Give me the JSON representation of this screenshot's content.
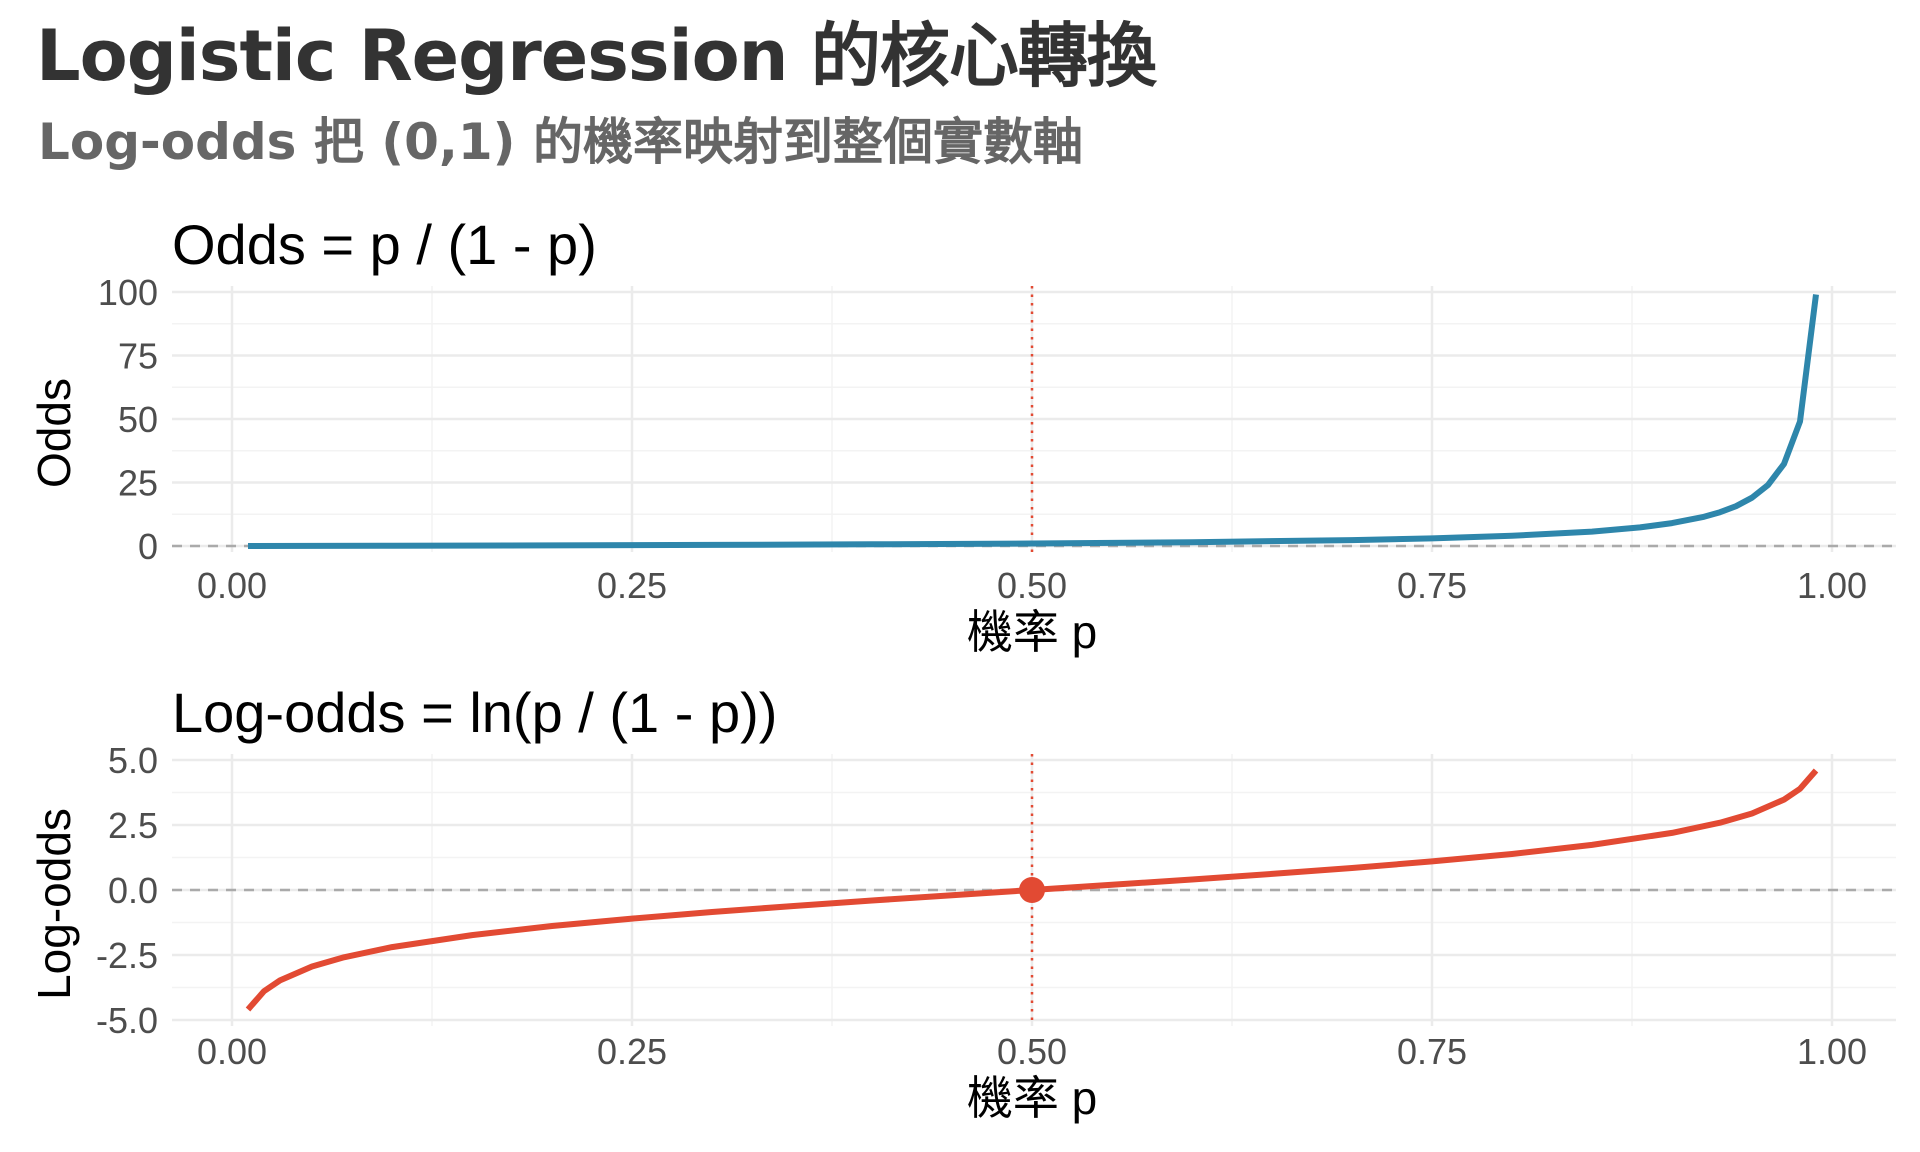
{
  "header": {
    "title": "Logistic Regression 的核心轉換",
    "subtitle": "Log-odds 把 (0,1) 的機率映射到整個實數軸"
  },
  "colors": {
    "odds_line": "#2e86ab",
    "logodds_line": "#e24a33",
    "vline": "#e24a33",
    "hline": "#aaaaaa",
    "grid": "#ebebeb"
  },
  "chart_data": [
    {
      "type": "line",
      "title": "Odds = p / (1 - p)",
      "xlabel": "機率 p",
      "ylabel": "Odds",
      "xlim": [
        0,
        1
      ],
      "ylim": [
        0,
        100
      ],
      "x_ticks": [
        0,
        0.25,
        0.5,
        0.75,
        1
      ],
      "x_tick_labels": [
        "0.00",
        "0.25",
        "0.50",
        "0.75",
        "1.00"
      ],
      "y_ticks": [
        0,
        25,
        50,
        75,
        100
      ],
      "y_tick_labels": [
        "0",
        "25",
        "50",
        "75",
        "100"
      ],
      "grid": true,
      "reference_lines": {
        "vertical_x": 0.5,
        "horizontal_y": 0
      },
      "series": [
        {
          "x": [
            0.01,
            0.05,
            0.1,
            0.2,
            0.3,
            0.4,
            0.5,
            0.6,
            0.7,
            0.75,
            0.8,
            0.85,
            0.88,
            0.9,
            0.92,
            0.93,
            0.94,
            0.95,
            0.96,
            0.97,
            0.98,
            0.99
          ],
          "values": [
            0.0101,
            0.0526,
            0.111,
            0.25,
            0.429,
            0.667,
            1,
            1.5,
            2.33,
            3,
            4,
            5.67,
            7.33,
            9,
            11.5,
            13.29,
            15.67,
            19,
            24,
            32.33,
            49,
            99
          ]
        }
      ]
    },
    {
      "type": "line",
      "title": "Log-odds = ln(p / (1 - p))",
      "xlabel": "機率 p",
      "ylabel": "Log-odds",
      "xlim": [
        0,
        1
      ],
      "ylim": [
        -5,
        5
      ],
      "x_ticks": [
        0,
        0.25,
        0.5,
        0.75,
        1
      ],
      "x_tick_labels": [
        "0.00",
        "0.25",
        "0.50",
        "0.75",
        "1.00"
      ],
      "y_ticks": [
        -5,
        -2.5,
        0,
        2.5,
        5
      ],
      "y_tick_labels": [
        "-5.0",
        "-2.5",
        "0.0",
        "2.5",
        "5.0"
      ],
      "grid": true,
      "reference_lines": {
        "vertical_x": 0.5,
        "horizontal_y": 0
      },
      "highlight_point": {
        "x": 0.5,
        "y": 0
      },
      "series": [
        {
          "x": [
            0.01,
            0.02,
            0.03,
            0.05,
            0.07,
            0.1,
            0.15,
            0.2,
            0.25,
            0.3,
            0.35,
            0.4,
            0.45,
            0.5,
            0.55,
            0.6,
            0.65,
            0.7,
            0.75,
            0.8,
            0.85,
            0.9,
            0.93,
            0.95,
            0.97,
            0.98,
            0.99
          ],
          "values": [
            -4.595,
            -3.892,
            -3.476,
            -2.944,
            -2.587,
            -2.197,
            -1.735,
            -1.386,
            -1.099,
            -0.847,
            -0.619,
            -0.405,
            -0.201,
            0,
            0.201,
            0.405,
            0.619,
            0.847,
            1.099,
            1.386,
            1.735,
            2.197,
            2.587,
            2.944,
            3.476,
            3.892,
            4.595
          ]
        }
      ]
    }
  ]
}
